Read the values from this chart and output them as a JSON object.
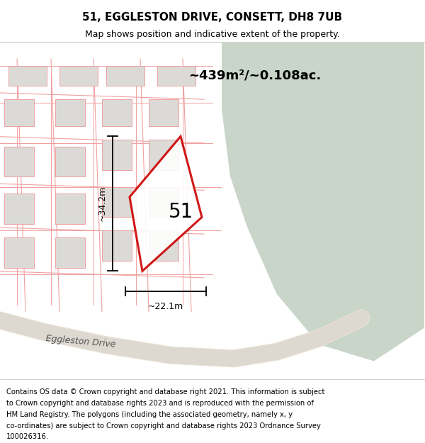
{
  "title": "51, EGGLESTON DRIVE, CONSETT, DH8 7UB",
  "subtitle": "Map shows position and indicative extent of the property.",
  "area_text": "~439m²/~0.108ac.",
  "dim_height": "~34.2m",
  "dim_width": "~22.1m",
  "number_label": "51",
  "footer": "Contains OS data © Crown copyright and database right 2021. This information is subject to Crown copyright and database rights 2023 and is reproduced with the permission of HM Land Registry. The polygons (including the associated geometry, namely x, y co-ordinates) are subject to Crown copyright and database rights 2023 Ordnance Survey 100026316.",
  "bg_color": "#f5f4f2",
  "map_bg": "#f0efed",
  "green_area_color": "#c8d5c8",
  "road_color": "#e8e0d8",
  "plot_line_color": "#cc0000",
  "plot_fill_color": "#ffffff",
  "plot_alpha": 0.85,
  "building_color": "#dcdad6",
  "road_line_color": "#f0a0a0",
  "street_name": "Eggleston Drive",
  "title_fontsize": 11,
  "subtitle_fontsize": 9,
  "footer_fontsize": 7.2
}
